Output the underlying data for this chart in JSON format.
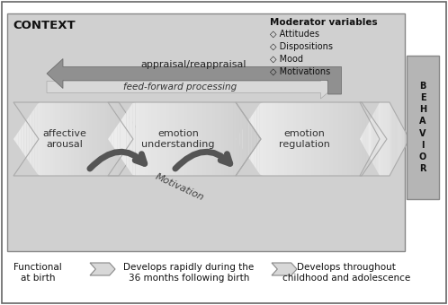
{
  "outer_bg": "#ffffff",
  "context_box_color": "#d0d0d0",
  "behavior_box_color": "#b8b8b8",
  "context_label": "CONTEXT",
  "behavior_label": "B\nE\nH\nA\nV\nI\nO\nR",
  "top_arrow_label": "appraisal/reappraisal",
  "feed_forward_label": "feed-forward processing",
  "motivation_label": "Motivation",
  "moderator_title": "Moderator variables",
  "moderator_items": [
    "◇ Attitudes",
    "◇ Dispositions",
    "◇ Mood",
    "◇ Motivations"
  ],
  "arrow_labels": [
    "affective\narousal",
    "emotion\nunderstanding",
    "emotion\nregulation",
    ""
  ],
  "bottom_texts": [
    "Functional\nat birth",
    "Develops rapidly during the\n36 months following birth",
    "Develops throughout\nchildhood and adolescence"
  ],
  "figsize": [
    4.98,
    3.4
  ],
  "dpi": 100
}
